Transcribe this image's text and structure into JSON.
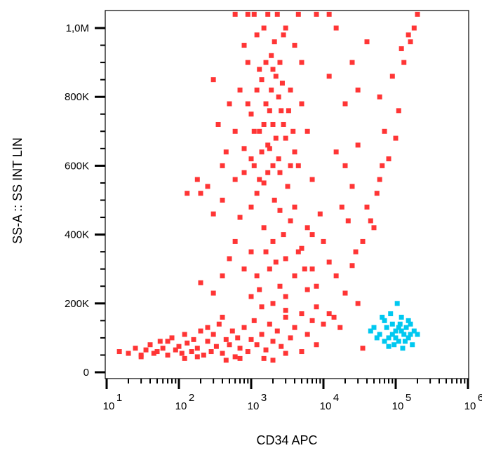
{
  "chart_data": {
    "type": "scatter",
    "title": "",
    "xlabel": "CD34 APC",
    "ylabel": "SS-A :: SS INT LIN",
    "x_scale": "log",
    "xlim": [
      10,
      1000000
    ],
    "ylim": [
      0,
      1050000
    ],
    "x_ticks": [
      {
        "base": "10",
        "exp": "1",
        "value": 10
      },
      {
        "base": "10",
        "exp": "2",
        "value": 100
      },
      {
        "base": "10",
        "exp": "3",
        "value": 1000
      },
      {
        "base": "10",
        "exp": "4",
        "value": 10000
      },
      {
        "base": "10",
        "exp": "5",
        "value": 100000
      },
      {
        "base": "10",
        "exp": "6",
        "value": 1000000
      }
    ],
    "y_ticks": [
      {
        "label": "0",
        "value": 0
      },
      {
        "label": "200K",
        "value": 200000
      },
      {
        "label": "400K",
        "value": 400000
      },
      {
        "label": "600K",
        "value": 600000
      },
      {
        "label": "800K",
        "value": 800000
      },
      {
        "label": "1,0M",
        "value": 1000000
      }
    ],
    "grid": false,
    "legend": "none",
    "series": [
      {
        "color": "#ff3535",
        "points": [
          [
            15,
            60000
          ],
          [
            20,
            55000
          ],
          [
            25,
            70000
          ],
          [
            30,
            50000
          ],
          [
            35,
            65000
          ],
          [
            40,
            80000
          ],
          [
            45,
            55000
          ],
          [
            50,
            60000
          ],
          [
            55,
            90000
          ],
          [
            60,
            70000
          ],
          [
            70,
            50000
          ],
          [
            80,
            100000
          ],
          [
            90,
            65000
          ],
          [
            100,
            75000
          ],
          [
            110,
            55000
          ],
          [
            120,
            110000
          ],
          [
            130,
            85000
          ],
          [
            150,
            60000
          ],
          [
            160,
            95000
          ],
          [
            180,
            70000
          ],
          [
            200,
            120000
          ],
          [
            220,
            50000
          ],
          [
            250,
            90000
          ],
          [
            280,
            60000
          ],
          [
            300,
            110000
          ],
          [
            330,
            75000
          ],
          [
            360,
            140000
          ],
          [
            400,
            55000
          ],
          [
            450,
            95000
          ],
          [
            500,
            80000
          ],
          [
            550,
            120000
          ],
          [
            600,
            45000
          ],
          [
            650,
            100000
          ],
          [
            700,
            70000
          ],
          [
            800,
            130000
          ],
          [
            900,
            60000
          ],
          [
            1000,
            95000
          ],
          [
            1100,
            150000
          ],
          [
            1200,
            80000
          ],
          [
            1400,
            110000
          ],
          [
            1600,
            65000
          ],
          [
            1800,
            140000
          ],
          [
            2000,
            90000
          ],
          [
            2300,
            120000
          ],
          [
            2600,
            75000
          ],
          [
            3000,
            160000
          ],
          [
            3500,
            100000
          ],
          [
            4000,
            130000
          ],
          [
            5000,
            170000
          ],
          [
            6000,
            110000
          ],
          [
            7000,
            150000
          ],
          [
            8000,
            190000
          ],
          [
            10000,
            140000
          ],
          [
            12000,
            170000
          ],
          [
            14000,
            160000
          ],
          [
            17000,
            130000
          ],
          [
            250,
            130000
          ],
          [
            120,
            40000
          ],
          [
            70,
            90000
          ],
          [
            400,
            160000
          ],
          [
            700,
            40000
          ],
          [
            1500,
            40000
          ],
          [
            3000,
            55000
          ],
          [
            5000,
            60000
          ],
          [
            30,
            45000
          ],
          [
            180,
            45000
          ],
          [
            450,
            35000
          ],
          [
            2000,
            35000
          ],
          [
            8000,
            80000
          ],
          [
            600,
            700000
          ],
          [
            700,
            820000
          ],
          [
            800,
            650000
          ],
          [
            900,
            900000
          ],
          [
            1000,
            750000
          ],
          [
            1100,
            600000
          ],
          [
            1200,
            980000
          ],
          [
            1300,
            700000
          ],
          [
            1400,
            850000
          ],
          [
            1500,
            550000
          ],
          [
            1600,
            780000
          ],
          [
            1700,
            1040000
          ],
          [
            1800,
            650000
          ],
          [
            1900,
            920000
          ],
          [
            2000,
            720000
          ],
          [
            2100,
            500000
          ],
          [
            2200,
            860000
          ],
          [
            2400,
            620000
          ],
          [
            2600,
            760000
          ],
          [
            2800,
            980000
          ],
          [
            3000,
            680000
          ],
          [
            3200,
            540000
          ],
          [
            3500,
            820000
          ],
          [
            3800,
            700000
          ],
          [
            4000,
            950000
          ],
          [
            4500,
            600000
          ],
          [
            5000,
            780000
          ],
          [
            600,
            560000
          ],
          [
            700,
            450000
          ],
          [
            800,
            950000
          ],
          [
            900,
            1040000
          ],
          [
            1000,
            480000
          ],
          [
            1200,
            820000
          ],
          [
            1300,
            560000
          ],
          [
            1500,
            1000000
          ],
          [
            1700,
            660000
          ],
          [
            2000,
            880000
          ],
          [
            2300,
            1040000
          ],
          [
            2500,
            580000
          ],
          [
            2700,
            840000
          ],
          [
            3000,
            1000000
          ],
          [
            3300,
            760000
          ],
          [
            4000,
            640000
          ],
          [
            5000,
            900000
          ],
          [
            6000,
            700000
          ],
          [
            7000,
            560000
          ],
          [
            500,
            780000
          ],
          [
            450,
            640000
          ],
          [
            400,
            600000
          ],
          [
            350,
            720000
          ],
          [
            300,
            460000
          ],
          [
            250,
            540000
          ],
          [
            200,
            520000
          ],
          [
            180,
            560000
          ],
          [
            130,
            520000
          ],
          [
            300,
            850000
          ],
          [
            400,
            500000
          ],
          [
            1100,
            700000
          ],
          [
            1400,
            640000
          ],
          [
            1800,
            760000
          ],
          [
            2200,
            680000
          ],
          [
            2500,
            900000
          ],
          [
            1600,
            900000
          ],
          [
            900,
            780000
          ],
          [
            1300,
            880000
          ],
          [
            2000,
            600000
          ],
          [
            1500,
            720000
          ],
          [
            2800,
            720000
          ],
          [
            3500,
            600000
          ],
          [
            1000,
            620000
          ],
          [
            1200,
            520000
          ],
          [
            800,
            580000
          ],
          [
            2400,
            800000
          ],
          [
            1900,
            820000
          ],
          [
            1700,
            580000
          ],
          [
            2100,
            960000
          ],
          [
            1100,
            1040000
          ],
          [
            600,
            1040000
          ],
          [
            4500,
            1040000
          ],
          [
            8000,
            1040000
          ],
          [
            12000,
            1040000
          ],
          [
            1000,
            350000
          ],
          [
            1200,
            280000
          ],
          [
            1500,
            420000
          ],
          [
            1800,
            300000
          ],
          [
            2000,
            380000
          ],
          [
            2500,
            250000
          ],
          [
            3000,
            330000
          ],
          [
            3500,
            440000
          ],
          [
            4000,
            280000
          ],
          [
            5000,
            360000
          ],
          [
            6000,
            420000
          ],
          [
            7000,
            300000
          ],
          [
            8000,
            250000
          ],
          [
            10000,
            380000
          ],
          [
            12000,
            320000
          ],
          [
            15000,
            280000
          ],
          [
            20000,
            230000
          ],
          [
            25000,
            310000
          ],
          [
            30000,
            200000
          ],
          [
            800,
            300000
          ],
          [
            1000,
            220000
          ],
          [
            1300,
            240000
          ],
          [
            2000,
            200000
          ],
          [
            2500,
            470000
          ],
          [
            3000,
            220000
          ],
          [
            4000,
            480000
          ],
          [
            6000,
            240000
          ],
          [
            9000,
            460000
          ],
          [
            1600,
            350000
          ],
          [
            2200,
            320000
          ],
          [
            2800,
            400000
          ],
          [
            4500,
            350000
          ],
          [
            5500,
            300000
          ],
          [
            7000,
            400000
          ],
          [
            600,
            380000
          ],
          [
            500,
            330000
          ],
          [
            400,
            280000
          ],
          [
            300,
            230000
          ],
          [
            200,
            260000
          ],
          [
            1400,
            190000
          ],
          [
            3000,
            180000
          ],
          [
            15000,
            640000
          ],
          [
            20000,
            780000
          ],
          [
            25000,
            900000
          ],
          [
            30000,
            820000
          ],
          [
            40000,
            480000
          ],
          [
            50000,
            420000
          ],
          [
            60000,
            560000
          ],
          [
            70000,
            700000
          ],
          [
            80000,
            620000
          ],
          [
            90000,
            860000
          ],
          [
            100000,
            680000
          ],
          [
            110000,
            760000
          ],
          [
            120000,
            940000
          ],
          [
            130000,
            900000
          ],
          [
            150000,
            980000
          ],
          [
            160000,
            960000
          ],
          [
            180000,
            1000000
          ],
          [
            200000,
            1040000
          ],
          [
            35000,
            380000
          ],
          [
            45000,
            440000
          ],
          [
            55000,
            520000
          ],
          [
            65000,
            600000
          ],
          [
            25000,
            540000
          ],
          [
            18000,
            480000
          ],
          [
            30000,
            660000
          ],
          [
            40000,
            960000
          ],
          [
            60000,
            800000
          ],
          [
            12000,
            860000
          ],
          [
            15000,
            1000000
          ],
          [
            22000,
            440000
          ],
          [
            28000,
            350000
          ],
          [
            35000,
            70000
          ],
          [
            20000,
            600000
          ]
        ]
      },
      {
        "color": "#00c8f0",
        "points": [
          [
            50000,
            130000
          ],
          [
            60000,
            110000
          ],
          [
            70000,
            150000
          ],
          [
            80000,
            100000
          ],
          [
            90000,
            140000
          ],
          [
            100000,
            120000
          ],
          [
            110000,
            90000
          ],
          [
            120000,
            160000
          ],
          [
            130000,
            110000
          ],
          [
            140000,
            130000
          ],
          [
            150000,
            100000
          ],
          [
            160000,
            140000
          ],
          [
            170000,
            80000
          ],
          [
            180000,
            120000
          ],
          [
            200000,
            110000
          ],
          [
            70000,
            90000
          ],
          [
            85000,
            170000
          ],
          [
            95000,
            80000
          ],
          [
            105000,
            200000
          ],
          [
            115000,
            140000
          ],
          [
            75000,
            130000
          ],
          [
            125000,
            70000
          ],
          [
            65000,
            160000
          ],
          [
            55000,
            100000
          ],
          [
            100000,
            100000
          ],
          [
            90000,
            110000
          ],
          [
            110000,
            130000
          ],
          [
            135000,
            90000
          ],
          [
            150000,
            150000
          ],
          [
            45000,
            120000
          ],
          [
            160000,
            110000
          ],
          [
            80000,
            75000
          ],
          [
            120000,
            120000
          ]
        ]
      }
    ]
  }
}
